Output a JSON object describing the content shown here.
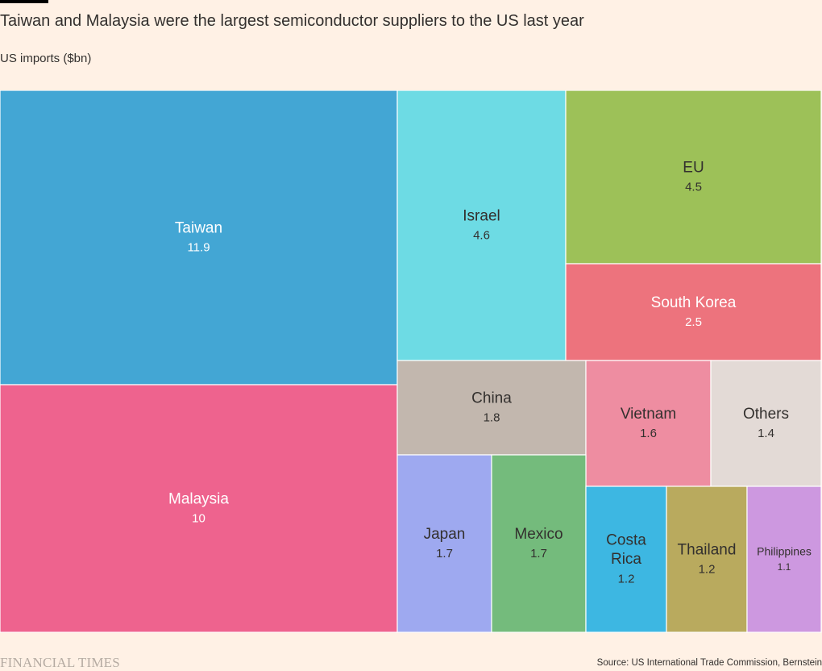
{
  "header": {
    "title": "Taiwan and Malaysia were the largest semiconductor suppliers to the US last year",
    "subtitle": "US imports ($bn)"
  },
  "footer": {
    "brand": "FINANCIAL TIMES",
    "source": "Source: US International Trade Commission, Bernstein"
  },
  "chart_data": {
    "type": "treemap",
    "title": "Taiwan and Malaysia were the largest semiconductor suppliers to the US last year",
    "unit": "US imports ($bn)",
    "items": [
      {
        "name": "Taiwan",
        "lines": [
          "Taiwan"
        ],
        "value": "11.9",
        "color": "#43a6d4",
        "text_color": "#ffffff"
      },
      {
        "name": "Malaysia",
        "lines": [
          "Malaysia"
        ],
        "value": "10",
        "color": "#ee638e",
        "text_color": "#ffffff"
      },
      {
        "name": "Israel",
        "lines": [
          "Israel"
        ],
        "value": "4.6",
        "color": "#6ddbe4",
        "text_color": "#33302e"
      },
      {
        "name": "EU",
        "lines": [
          "EU"
        ],
        "value": "4.5",
        "color": "#9dc158",
        "text_color": "#33302e"
      },
      {
        "name": "South Korea",
        "lines": [
          "South Korea"
        ],
        "value": "2.5",
        "color": "#ed737d",
        "text_color": "#ffffff"
      },
      {
        "name": "China",
        "lines": [
          "China"
        ],
        "value": "1.8",
        "color": "#c2b7ae",
        "text_color": "#33302e"
      },
      {
        "name": "Vietnam",
        "lines": [
          "Vietnam"
        ],
        "value": "1.6",
        "color": "#ee8da1",
        "text_color": "#33302e"
      },
      {
        "name": "Others",
        "lines": [
          "Others"
        ],
        "value": "1.4",
        "color": "#e3dad6",
        "text_color": "#33302e"
      },
      {
        "name": "Japan",
        "lines": [
          "Japan"
        ],
        "value": "1.7",
        "color": "#9ea9f0",
        "text_color": "#33302e"
      },
      {
        "name": "Mexico",
        "lines": [
          "Mexico"
        ],
        "value": "1.7",
        "color": "#74bb7c",
        "text_color": "#33302e"
      },
      {
        "name": "Costa Rica",
        "lines": [
          "Costa",
          "Rica"
        ],
        "value": "1.2",
        "color": "#3db7e2",
        "text_color": "#33302e"
      },
      {
        "name": "Thailand",
        "lines": [
          "Thailand"
        ],
        "value": "1.2",
        "color": "#b9aa5e",
        "text_color": "#33302e"
      },
      {
        "name": "Philippines",
        "lines": [
          "Philippines"
        ],
        "value": "1.1",
        "color": "#cd98e0",
        "text_color": "#33302e"
      }
    ]
  }
}
